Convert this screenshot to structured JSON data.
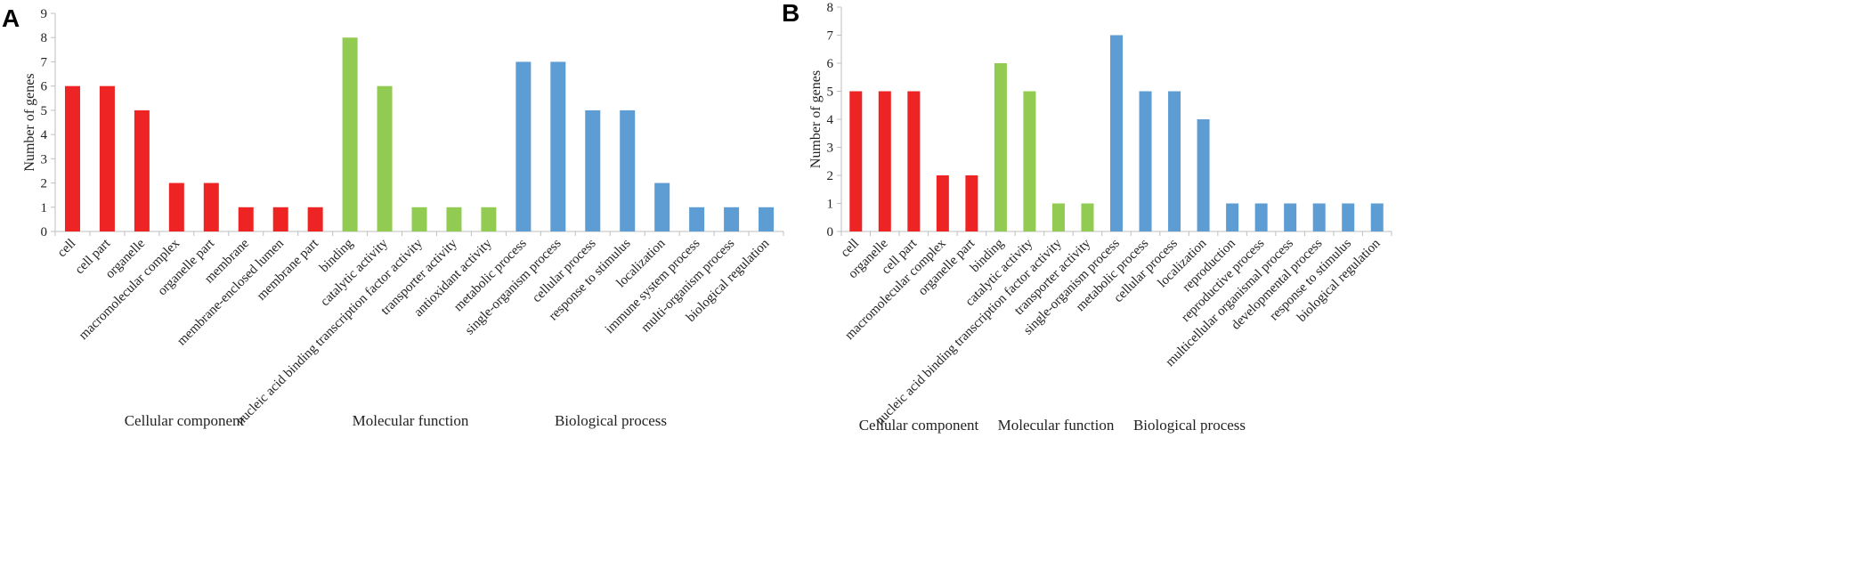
{
  "colors": {
    "cellular": "#ee2424",
    "molecular": "#92cb52",
    "biological": "#5e9cd4",
    "axis": "#bfbfbf"
  },
  "chart_data": [
    {
      "type": "bar",
      "panel": "A",
      "ylabel": "Number of genes",
      "ylim": [
        0,
        9
      ],
      "yticks": [
        0,
        1,
        2,
        3,
        4,
        5,
        6,
        7,
        8,
        9
      ],
      "categories": [
        "cell",
        "cell part",
        "organelle",
        "macromolecular complex",
        "organelle part",
        "membrane",
        "membrane-enclosed lumen",
        "membrane part",
        "binding",
        "catalytic activity",
        "nucleic acid binding transcription factor activity",
        "transporter activity",
        "antioxidant activity",
        "metabolic process",
        "single-organism process",
        "cellular process",
        "response to stimulus",
        "localization",
        "immune system process",
        "multi-organism process",
        "biological regulation"
      ],
      "values": [
        6,
        6,
        5,
        2,
        2,
        1,
        1,
        1,
        8,
        6,
        1,
        1,
        1,
        7,
        7,
        5,
        5,
        2,
        1,
        1,
        1
      ],
      "group_of": [
        "cellular",
        "cellular",
        "cellular",
        "cellular",
        "cellular",
        "cellular",
        "cellular",
        "cellular",
        "molecular",
        "molecular",
        "molecular",
        "molecular",
        "molecular",
        "biological",
        "biological",
        "biological",
        "biological",
        "biological",
        "biological",
        "biological",
        "biological"
      ],
      "groups": [
        {
          "key": "cellular",
          "label": "Cellular component"
        },
        {
          "key": "molecular",
          "label": "Molecular function"
        },
        {
          "key": "biological",
          "label": "Biological process"
        }
      ]
    },
    {
      "type": "bar",
      "panel": "B",
      "ylabel": "Number of genes",
      "ylim": [
        0,
        8
      ],
      "yticks": [
        0,
        1,
        2,
        3,
        4,
        5,
        6,
        7,
        8
      ],
      "categories": [
        "cell",
        "organelle",
        "cell part",
        "macromolecular complex",
        "organelle part",
        "binding",
        "catalytic activity",
        "nucleic acid binding transcription factor activity",
        "transporter activity",
        "single-organism process",
        "metabolic process",
        "cellular process",
        "localization",
        "reproduction",
        "reproductive process",
        "multicellular organismal process",
        "developmental process",
        "response to stimulus",
        "biological regulation"
      ],
      "values": [
        5,
        5,
        5,
        2,
        2,
        6,
        5,
        1,
        1,
        7,
        5,
        5,
        4,
        1,
        1,
        1,
        1,
        1,
        1
      ],
      "group_of": [
        "cellular",
        "cellular",
        "cellular",
        "cellular",
        "cellular",
        "molecular",
        "molecular",
        "molecular",
        "molecular",
        "biological",
        "biological",
        "biological",
        "biological",
        "biological",
        "biological",
        "biological",
        "biological",
        "biological",
        "biological"
      ],
      "groups": [
        {
          "key": "cellular",
          "label": "Cellular component"
        },
        {
          "key": "molecular",
          "label": "Molecular function"
        },
        {
          "key": "biological",
          "label": "Biological process"
        }
      ]
    }
  ]
}
